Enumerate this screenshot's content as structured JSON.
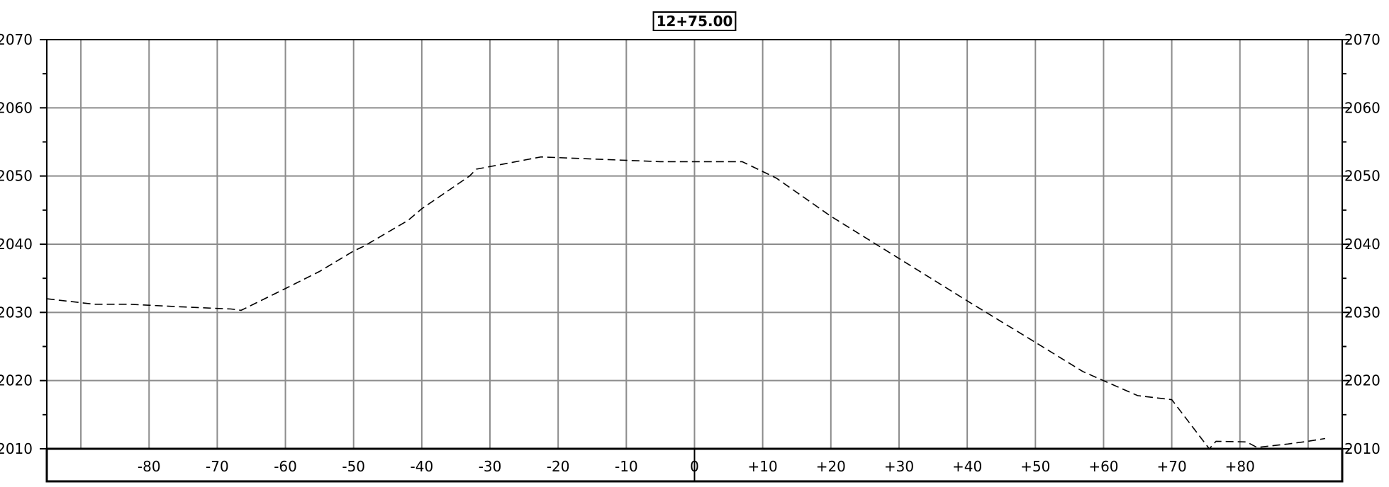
{
  "chart_data": {
    "type": "line",
    "title": "12+75.00",
    "xlabel": "",
    "ylabel": "",
    "xlim": [
      -95,
      95
    ],
    "ylim": [
      2010,
      2070
    ],
    "grid": true,
    "x_ticks": [
      -90,
      -80,
      -70,
      -60,
      -50,
      -40,
      -30,
      -20,
      -10,
      0,
      10,
      20,
      30,
      40,
      50,
      60,
      70,
      80,
      90
    ],
    "x_tick_labels": [
      "-80",
      "-70",
      "-60",
      "-50",
      "-40",
      "-30",
      "-20",
      "-10",
      "0",
      "+10",
      "+20",
      "+30",
      "+40",
      "+50",
      "+60",
      "+70",
      "+80"
    ],
    "x_tick_label_values": [
      -80,
      -70,
      -60,
      -50,
      -40,
      -30,
      -20,
      -10,
      0,
      10,
      20,
      30,
      40,
      50,
      60,
      70,
      80
    ],
    "y_ticks": [
      2010,
      2020,
      2030,
      2040,
      2050,
      2060,
      2070
    ],
    "y_tick_labels": [
      "2010",
      "2020",
      "2030",
      "2040",
      "2050",
      "2060",
      "2070"
    ],
    "line_style": "dashed",
    "line_color": "#000000",
    "grid_color": "#8c8c8c",
    "series": [
      {
        "x": [
          -95,
          -88,
          -83,
          -75,
          -68,
          -66.5,
          -60,
          -55,
          -50,
          -48.5,
          -42,
          -40,
          -33,
          -32,
          -22.5,
          -15,
          -5,
          0,
          7,
          12,
          20,
          30,
          40,
          50,
          57,
          65,
          70,
          75.5,
          76.5,
          81,
          82.5,
          87,
          90,
          92.5
        ],
        "y": [
          2032,
          2031.2,
          2031.2,
          2030.8,
          2030.5,
          2030.3,
          2033.5,
          2036,
          2039,
          2039.7,
          2043.5,
          2045.2,
          2050,
          2051,
          2052.8,
          2052.5,
          2052.1,
          2052.1,
          2052.1,
          2049.7,
          2044.1,
          2037.9,
          2031.7,
          2025.6,
          2021.3,
          2017.8,
          2017.2,
          2010,
          2011.1,
          2011,
          2010.2,
          2010.7,
          2011.1,
          2011.5
        ]
      }
    ]
  }
}
